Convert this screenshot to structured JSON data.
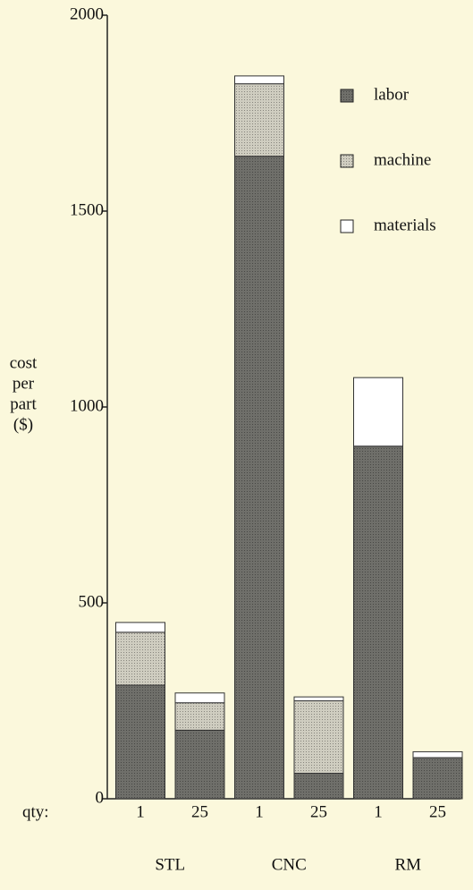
{
  "chart_data": {
    "type": "stacked_bar",
    "ylabel": [
      "cost",
      "per",
      "part",
      "($)"
    ],
    "qty_label": "qty:",
    "categories": [
      "1",
      "25",
      "1",
      "25",
      "1",
      "25"
    ],
    "groups": [
      "STL",
      "CNC",
      "RM"
    ],
    "series": [
      {
        "name": "labor",
        "color": "#6f6f6a",
        "values": [
          290,
          175,
          1640,
          65,
          900,
          105
        ]
      },
      {
        "name": "machine",
        "color": "#cfcdc0",
        "values": [
          135,
          70,
          185,
          185,
          0,
          0
        ]
      },
      {
        "name": "materials",
        "color": "#ffffff",
        "values": [
          25,
          25,
          20,
          10,
          175,
          15
        ]
      }
    ],
    "ylim": [
      0,
      2000
    ],
    "yticks": [
      0,
      500,
      1000,
      1500,
      2000
    ]
  }
}
